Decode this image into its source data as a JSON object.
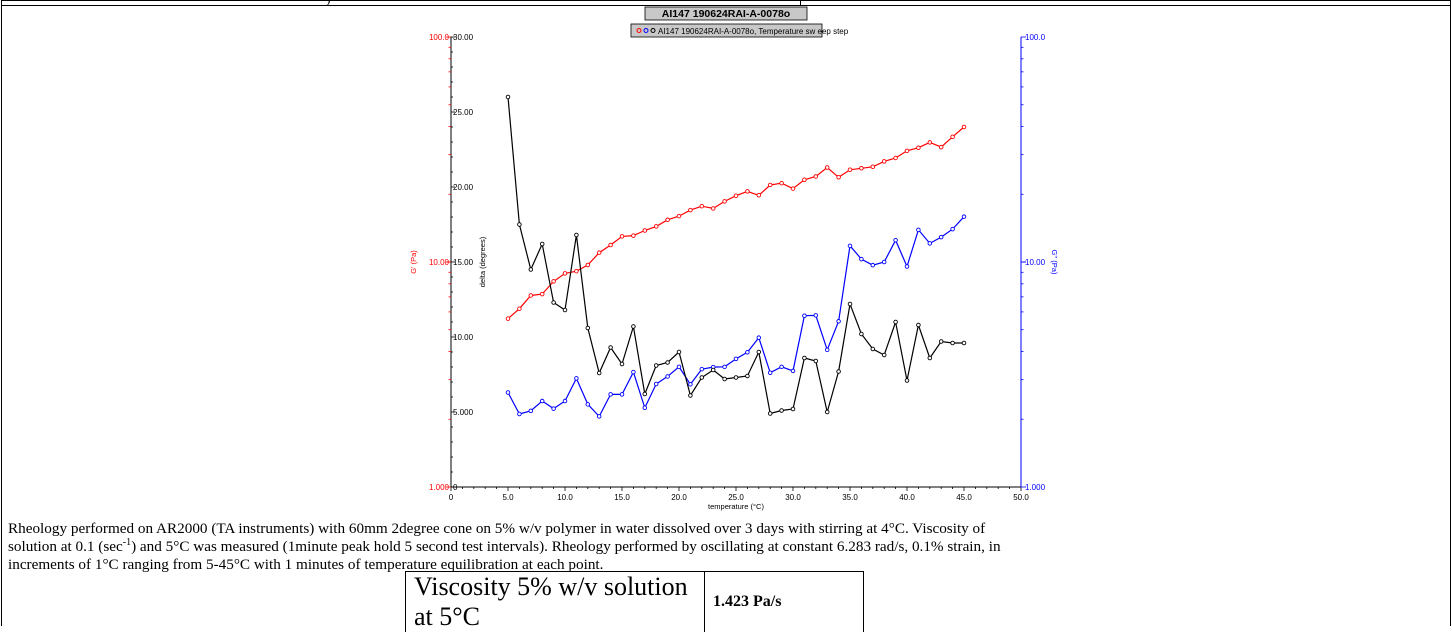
{
  "page": {
    "top_fragment": ")"
  },
  "chart_data": {
    "type": "line",
    "title": "AI147 190624RAI-A-0078o",
    "legend_label": "AI147 190624RAI-A-0078o, Temperature sw eep step",
    "xlabel": "temperature (°C)",
    "ylabel_left_outer": "G' (Pa)",
    "ylabel_left_inner": "delta (degrees)",
    "ylabel_right": "G'' (Pa)",
    "xlim": [
      0,
      50
    ],
    "x_ticks": [
      "0",
      "5.0",
      "10.0",
      "15.0",
      "20.0",
      "25.0",
      "30.0",
      "35.0",
      "40.0",
      "45.0",
      "50.0"
    ],
    "delta_axis": {
      "ylim": [
        0,
        30
      ],
      "ticks": [
        "0",
        "5.000",
        "10.00",
        "15.00",
        "20.00",
        "25.00",
        "30.00"
      ]
    },
    "g_prime_axis": {
      "scale": "log",
      "ylim": [
        1,
        100
      ],
      "ticks": [
        "1.000",
        "10.00",
        "100.0"
      ]
    },
    "g_double_prime_axis": {
      "scale": "log",
      "ylim": [
        1,
        100
      ],
      "ticks": [
        "1.000",
        "10.00",
        "100.0"
      ]
    },
    "grid": false,
    "legend": "top-center",
    "colors": {
      "g_prime": "#ff0000",
      "g_double_prime": "#0000ff",
      "delta": "#000000",
      "axis_left_outer": "#ff0000",
      "axis_right": "#0000ff"
    },
    "x": [
      5,
      6,
      7,
      8,
      9,
      10,
      11,
      12,
      13,
      14,
      15,
      16,
      17,
      18,
      19,
      20,
      21,
      22,
      23,
      24,
      25,
      26,
      27,
      28,
      29,
      30,
      31,
      32,
      33,
      34,
      35,
      36,
      37,
      38,
      39,
      40,
      41,
      42,
      43,
      44,
      45
    ],
    "series": [
      {
        "name": "G' (Pa)",
        "axis": "g_prime",
        "values": [
          5.6,
          6.2,
          7.1,
          7.2,
          8.2,
          8.9,
          9.1,
          9.7,
          11.0,
          11.9,
          13.0,
          13.1,
          13.8,
          14.4,
          15.4,
          16.0,
          17.0,
          17.7,
          17.3,
          18.6,
          19.7,
          20.6,
          19.8,
          22.0,
          22.4,
          21.2,
          23.2,
          24.0,
          26.3,
          23.8,
          25.7,
          26.1,
          26.5,
          28.0,
          29.0,
          31.2,
          32.2,
          34.0,
          32.4,
          36.0,
          39.8
        ]
      },
      {
        "name": "G'' (Pa)",
        "axis": "g_double_prime",
        "values": [
          2.63,
          2.11,
          2.18,
          2.41,
          2.23,
          2.41,
          3.04,
          2.33,
          2.06,
          2.58,
          2.58,
          3.24,
          2.25,
          2.87,
          3.1,
          3.42,
          2.86,
          3.34,
          3.41,
          3.42,
          3.71,
          3.97,
          4.61,
          3.22,
          3.42,
          3.28,
          5.77,
          5.79,
          4.07,
          5.45,
          11.8,
          10.3,
          9.68,
          10.0,
          12.5,
          9.55,
          13.9,
          12.1,
          12.9,
          14.0,
          15.9
        ]
      },
      {
        "name": "delta (degrees)",
        "axis": "delta",
        "values": [
          26.0,
          17.5,
          14.5,
          16.2,
          12.3,
          11.8,
          16.8,
          10.6,
          7.6,
          9.3,
          8.2,
          10.7,
          6.2,
          8.1,
          8.3,
          9.0,
          6.1,
          7.3,
          7.8,
          7.2,
          7.3,
          7.4,
          9.0,
          4.9,
          5.1,
          5.2,
          8.6,
          8.4,
          5.0,
          7.7,
          12.2,
          10.2,
          9.2,
          8.8,
          11.0,
          7.1,
          10.8,
          8.6,
          9.7,
          9.6,
          9.6
        ]
      }
    ]
  },
  "description": {
    "line1_pre": "Rheology  performed on AR2000 (TA instruments) with 60mm 2degree cone on 5% w/v polymer in water dissolved over 3 days with stirring at 4°C. Viscosity of",
    "line2_pre": "solution at 0.1 (sec",
    "line2_sup": "-1",
    "line2_post": ") and 5°C was measured (1minute peak hold 5 second test intervals). Rheology performed by oscillating at constant 6.283 rad/s, 0.1% strain, in",
    "line3": "increments of 1°C ranging from 5-45°C with 1 minutes of temperature equilibration at each point."
  },
  "viscosity_table": {
    "label": "Viscosity 5% w/v solution at 5°C",
    "value": "1.423 Pa/s"
  }
}
